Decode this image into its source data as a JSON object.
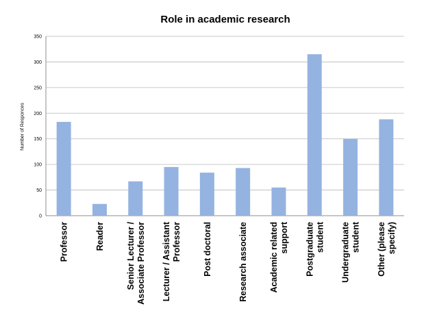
{
  "chart_data": {
    "type": "bar",
    "title": "Role in academic research",
    "xlabel": "",
    "ylabel": "Number of Responces",
    "ylim": [
      0,
      350
    ],
    "yticks": [
      0,
      50,
      100,
      150,
      200,
      250,
      300,
      350
    ],
    "grid": true,
    "legend": "none",
    "bar_color": "#95b3e0",
    "categories": [
      [
        "Professor"
      ],
      [
        "Reader"
      ],
      [
        "Senior Lecturer /",
        "Associate Professor"
      ],
      [
        "Lecturer / Assistant",
        "Professor"
      ],
      [
        "Post doctoral"
      ],
      [
        "Research associate"
      ],
      [
        "Academic related",
        "support"
      ],
      [
        "Postgraduate",
        "student"
      ],
      [
        "Undergraduate",
        "student"
      ],
      [
        "Other (please",
        "specify)"
      ]
    ],
    "values": [
      183,
      23,
      67,
      95,
      84,
      93,
      55,
      315,
      150,
      188
    ]
  }
}
